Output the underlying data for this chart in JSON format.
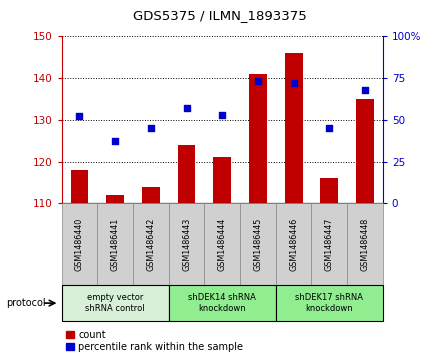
{
  "title": "GDS5375 / ILMN_1893375",
  "samples": [
    "GSM1486440",
    "GSM1486441",
    "GSM1486442",
    "GSM1486443",
    "GSM1486444",
    "GSM1486445",
    "GSM1486446",
    "GSM1486447",
    "GSM1486448"
  ],
  "counts": [
    118,
    112,
    114,
    124,
    121,
    141,
    146,
    116,
    135
  ],
  "percentiles": [
    52,
    37,
    45,
    57,
    53,
    73,
    72,
    45,
    68
  ],
  "ylim_left": [
    110,
    150
  ],
  "ylim_right": [
    0,
    100
  ],
  "yticks_left": [
    110,
    120,
    130,
    140,
    150
  ],
  "yticks_right": [
    0,
    25,
    50,
    75,
    100
  ],
  "ytick_labels_right": [
    "0",
    "25",
    "50",
    "75",
    "100%"
  ],
  "group_texts": [
    "empty vector\nshRNA control",
    "shDEK14 shRNA\nknockdown",
    "shDEK17 shRNA\nknockdown"
  ],
  "group_ranges": [
    [
      0,
      3
    ],
    [
      3,
      6
    ],
    [
      6,
      9
    ]
  ],
  "group_colors": [
    "#d8f0d8",
    "#90ee90",
    "#90ee90"
  ],
  "bar_color": "#C00000",
  "dot_color": "#0000CD",
  "bar_width": 0.5,
  "protocol_label": "protocol",
  "legend_count_label": "count",
  "legend_percentile_label": "percentile rank within the sample",
  "xtick_bg": "#d0d0d0"
}
